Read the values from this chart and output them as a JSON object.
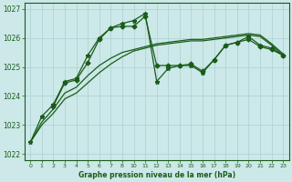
{
  "title": "Graphe pression niveau de la mer (hPa)",
  "bg_color": "#cce8e8",
  "grid_color": "#b0d4d4",
  "line_color": "#1a5c1a",
  "ylim": [
    1022,
    1027
  ],
  "ytick_vals": [
    1022,
    1023,
    1024,
    1025,
    1026,
    1027
  ],
  "xlabel_str": "0 1 2 3 4 5 6 7 8   1011121314151617181920212223",
  "n_hours": 24,
  "series": [
    {
      "x": [
        0,
        1,
        2,
        3,
        4,
        5,
        6,
        7,
        8,
        10,
        11,
        12,
        13,
        14,
        15,
        16,
        17,
        18,
        19,
        20,
        21,
        22,
        23
      ],
      "y": [
        1022.4,
        1023.3,
        1023.7,
        1024.5,
        1024.6,
        1025.4,
        1026.0,
        1026.35,
        1026.5,
        1026.6,
        1026.85,
        1024.5,
        1024.95,
        1025.05,
        1025.05,
        1024.8,
        1025.25,
        1025.75,
        1025.85,
        1026.05,
        1025.75,
        1025.65,
        1025.4
      ],
      "marker": "*",
      "markersize": 3.5,
      "lw": 0.9
    },
    {
      "x": [
        0,
        1,
        2,
        3,
        4,
        5,
        6,
        7,
        8,
        10,
        11,
        12,
        13,
        14,
        15,
        16,
        17,
        18,
        19,
        20,
        21,
        22,
        23
      ],
      "y": [
        1022.4,
        1023.1,
        1023.55,
        1024.1,
        1024.3,
        1024.7,
        1025.05,
        1025.3,
        1025.5,
        1025.6,
        1025.7,
        1025.8,
        1025.85,
        1025.9,
        1025.95,
        1025.95,
        1026.0,
        1026.05,
        1026.1,
        1026.15,
        1026.1,
        1025.8,
        1025.45
      ],
      "marker": null,
      "markersize": 0,
      "lw": 0.9
    },
    {
      "x": [
        2,
        3,
        4,
        5,
        6,
        7,
        8,
        10,
        11,
        12,
        13,
        14,
        15,
        16,
        17,
        18,
        19,
        20,
        21,
        22,
        23
      ],
      "y": [
        1023.65,
        1024.45,
        1024.55,
        1025.15,
        1025.95,
        1026.35,
        1026.4,
        1026.4,
        1026.75,
        1025.05,
        1025.05,
        1025.05,
        1025.1,
        1024.85,
        1025.25,
        1025.75,
        1025.85,
        1025.95,
        1025.7,
        1025.6,
        1025.4
      ],
      "marker": "D",
      "markersize": 2.5,
      "lw": 0.9
    },
    {
      "x": [
        0,
        1,
        2,
        3,
        4,
        5,
        6,
        7,
        8,
        10,
        11,
        12,
        13,
        14,
        15,
        16,
        17,
        18,
        19,
        20,
        21,
        22,
        23
      ],
      "y": [
        1022.4,
        1023.0,
        1023.4,
        1023.9,
        1024.1,
        1024.45,
        1024.8,
        1025.1,
        1025.35,
        1025.55,
        1025.65,
        1025.75,
        1025.8,
        1025.85,
        1025.9,
        1025.9,
        1025.95,
        1026.0,
        1026.05,
        1026.1,
        1026.05,
        1025.75,
        1025.4
      ],
      "marker": null,
      "markersize": 0,
      "lw": 0.9
    }
  ]
}
